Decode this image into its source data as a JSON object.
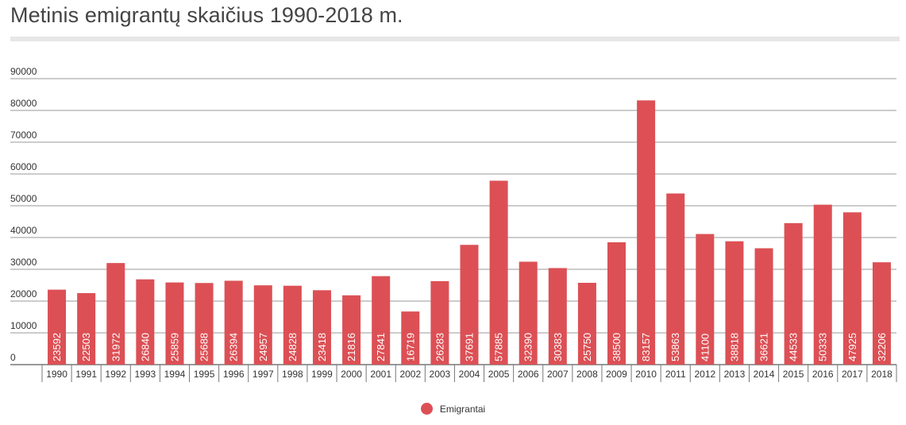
{
  "title": "Metinis emigrantų skaičius 1990-2018 m.",
  "colors": {
    "bar": "#dc5055",
    "grid": "#999999",
    "text": "#333333"
  },
  "chart_data": {
    "type": "bar",
    "title": "Metinis emigrantų skaičius 1990-2018 m.",
    "categories": [
      "1990",
      "1991",
      "1992",
      "1993",
      "1994",
      "1995",
      "1996",
      "1997",
      "1998",
      "1999",
      "2000",
      "2001",
      "2002",
      "2003",
      "2004",
      "2005",
      "2006",
      "2007",
      "2008",
      "2009",
      "2010",
      "2011",
      "2012",
      "2013",
      "2014",
      "2015",
      "2016",
      "2017",
      "2018"
    ],
    "series": [
      {
        "name": "Emigrantai",
        "values": [
          23592,
          22503,
          31972,
          26840,
          25859,
          25688,
          26394,
          24957,
          24828,
          23418,
          21816,
          27841,
          16719,
          26283,
          37691,
          57885,
          32390,
          30383,
          25750,
          38500,
          83157,
          53863,
          41100,
          38818,
          36621,
          44533,
          50333,
          47925,
          32206
        ]
      }
    ],
    "y_ticks": [
      "0",
      "10000",
      "20000",
      "30000",
      "40000",
      "50000",
      "60000",
      "70000",
      "80000",
      "90000"
    ],
    "ylim": [
      0,
      90000
    ],
    "grid": true,
    "legend_position": "bottom-center",
    "data_labels": "inside-bar-rotated"
  }
}
